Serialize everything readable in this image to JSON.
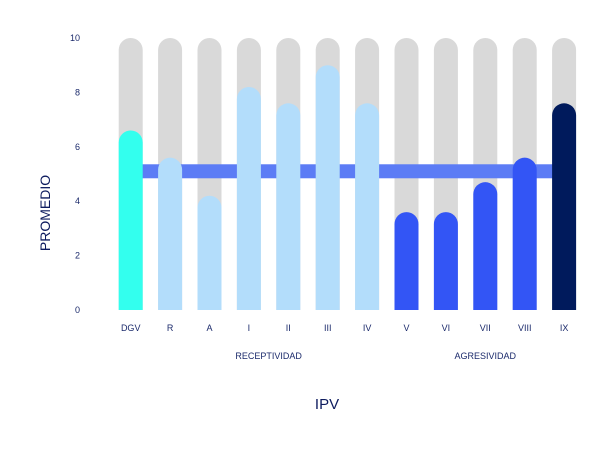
{
  "chart_data": {
    "type": "bar",
    "categories": [
      "DGV",
      "R",
      "A",
      "I",
      "II",
      "III",
      "IV",
      "V",
      "VI",
      "VII",
      "VIII",
      "IX"
    ],
    "values": [
      6.6,
      5.6,
      4.2,
      8.2,
      7.6,
      9.0,
      7.6,
      3.6,
      3.6,
      4.7,
      5.6,
      7.6
    ],
    "max_value": 10,
    "bar_colors": [
      "#33ffee",
      "#b3ddfb",
      "#b3ddfb",
      "#b3ddfb",
      "#b3ddfb",
      "#b3ddfb",
      "#b3ddfb",
      "#3355f5",
      "#3355f5",
      "#3355f5",
      "#3355f5",
      "#001a5c"
    ],
    "background_bar_color": "#d9d9d9",
    "reference_line": {
      "value": 5.1,
      "color": "#5c7cf5"
    },
    "ylim": [
      0,
      10
    ],
    "yticks": [
      "0",
      "2",
      "4",
      "6",
      "8",
      "10"
    ],
    "xlabel": "IPV",
    "ylabel": "PROMEDIO",
    "groups": [
      {
        "label": "RECEPTIVIDAD",
        "first_index": 1,
        "last_index": 6
      },
      {
        "label": "AGRESIVIDAD",
        "first_index": 7,
        "last_index": 11
      }
    ],
    "grid": false
  }
}
